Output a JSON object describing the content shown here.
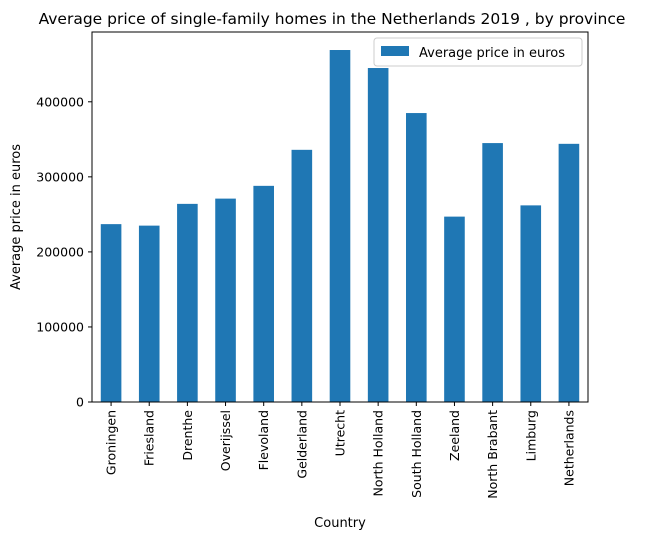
{
  "chart_data": {
    "type": "bar",
    "title": "Average price of single-family homes in the Netherlands 2019 , by province",
    "xlabel": "Country",
    "ylabel": "Average price in euros",
    "categories": [
      "Groningen",
      "Friesland",
      "Drenthe",
      "Overijssel",
      "Flevoland",
      "Gelderland",
      "Utrecht",
      "North Holland",
      "South Holland",
      "Zeeland",
      "North Brabant",
      "Limburg",
      "Netherlands"
    ],
    "series": [
      {
        "name": "Average price in euros",
        "color": "#1f77b4",
        "values": [
          237000,
          235000,
          264000,
          271000,
          288000,
          336000,
          469000,
          445000,
          385000,
          247000,
          345000,
          262000,
          344000
        ]
      }
    ],
    "ylim": [
      0,
      493000
    ],
    "yticks": [
      0,
      100000,
      200000,
      300000,
      400000
    ],
    "ytick_labels": [
      "0",
      "100000",
      "200000",
      "300000",
      "400000"
    ],
    "legend_position": "upper right",
    "grid": false
  }
}
